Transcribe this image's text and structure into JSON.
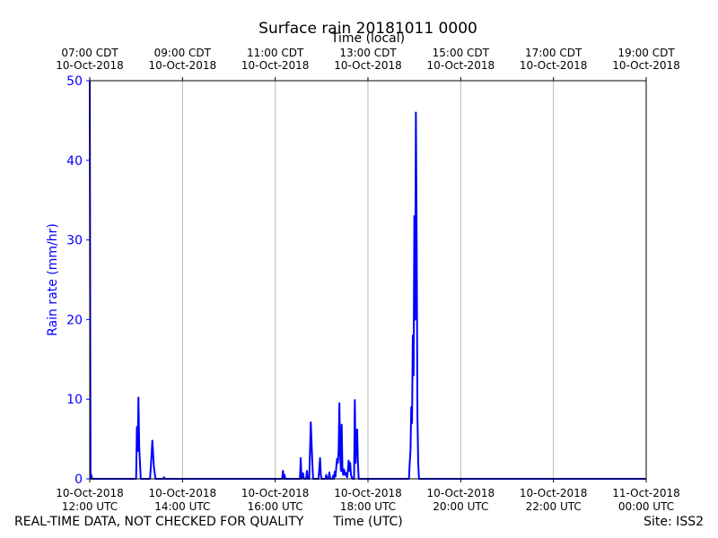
{
  "footer": {
    "left": "REAL-TIME DATA, NOT CHECKED FOR QUALITY",
    "center": "Time (UTC)",
    "right": "Site: ISS2"
  },
  "colors": {
    "series": "#0000ff",
    "grid": "#b0b0b0",
    "axis": "#000000"
  },
  "chart_data": {
    "type": "line",
    "title": "Surface rain 20181011 0000",
    "xlabel": "Time (UTC)",
    "x2label": "Time (local)",
    "ylabel": "Rain rate (mm/hr)",
    "xlim": [
      "2018-10-10 12:00",
      "2018-10-11 00:00"
    ],
    "ylim": [
      0,
      50
    ],
    "yticks": [
      0,
      10,
      20,
      30,
      40,
      50
    ],
    "grid": "vertical",
    "xticks": [
      {
        "t": "2018-10-10 12:00",
        "line1": "10-Oct-2018",
        "line2": "12:00 UTC"
      },
      {
        "t": "2018-10-10 14:00",
        "line1": "10-Oct-2018",
        "line2": "14:00 UTC"
      },
      {
        "t": "2018-10-10 16:00",
        "line1": "10-Oct-2018",
        "line2": "16:00 UTC"
      },
      {
        "t": "2018-10-10 18:00",
        "line1": "10-Oct-2018",
        "line2": "18:00 UTC"
      },
      {
        "t": "2018-10-10 20:00",
        "line1": "10-Oct-2018",
        "line2": "20:00 UTC"
      },
      {
        "t": "2018-10-10 22:00",
        "line1": "10-Oct-2018",
        "line2": "22:00 UTC"
      },
      {
        "t": "2018-10-11 00:00",
        "line1": "11-Oct-2018",
        "line2": "00:00 UTC"
      }
    ],
    "x2ticks": [
      {
        "t": "2018-10-10 12:00",
        "line1": "07:00 CDT",
        "line2": "10-Oct-2018"
      },
      {
        "t": "2018-10-10 14:00",
        "line1": "09:00 CDT",
        "line2": "10-Oct-2018"
      },
      {
        "t": "2018-10-10 16:00",
        "line1": "11:00 CDT",
        "line2": "10-Oct-2018"
      },
      {
        "t": "2018-10-10 18:00",
        "line1": "13:00 CDT",
        "line2": "10-Oct-2018"
      },
      {
        "t": "2018-10-10 20:00",
        "line1": "15:00 CDT",
        "line2": "10-Oct-2018"
      },
      {
        "t": "2018-10-10 22:00",
        "line1": "17:00 CDT",
        "line2": "10-Oct-2018"
      },
      {
        "t": "2018-10-11 00:00",
        "line1": "19:00 CDT",
        "line2": "10-Oct-2018"
      }
    ],
    "series": [
      {
        "points": [
          [
            "2018-10-10 12:00",
            50
          ],
          [
            "2018-10-10 12:01",
            0
          ],
          [
            "2018-10-10 12:02",
            0.5
          ],
          [
            "2018-10-10 12:03",
            0
          ],
          [
            "2018-10-10 13:00",
            0
          ],
          [
            "2018-10-10 13:01",
            6.5
          ],
          [
            "2018-10-10 13:02",
            3.5
          ],
          [
            "2018-10-10 13:03",
            10.2
          ],
          [
            "2018-10-10 13:04",
            4
          ],
          [
            "2018-10-10 13:06",
            0
          ],
          [
            "2018-10-10 13:18",
            0
          ],
          [
            "2018-10-10 13:20",
            3
          ],
          [
            "2018-10-10 13:21",
            4.8
          ],
          [
            "2018-10-10 13:23",
            1.5
          ],
          [
            "2018-10-10 13:25",
            0
          ],
          [
            "2018-10-10 13:35",
            0
          ],
          [
            "2018-10-10 13:36",
            0.2
          ],
          [
            "2018-10-10 13:37",
            0
          ],
          [
            "2018-10-10 16:09",
            0
          ],
          [
            "2018-10-10 16:10",
            1
          ],
          [
            "2018-10-10 16:11",
            0
          ],
          [
            "2018-10-10 16:12",
            0.5
          ],
          [
            "2018-10-10 16:13",
            0
          ],
          [
            "2018-10-10 16:32",
            0
          ],
          [
            "2018-10-10 16:33",
            2.6
          ],
          [
            "2018-10-10 16:34",
            0
          ],
          [
            "2018-10-10 16:36",
            0.7
          ],
          [
            "2018-10-10 16:37",
            0
          ],
          [
            "2018-10-10 16:40",
            0
          ],
          [
            "2018-10-10 16:41",
            1
          ],
          [
            "2018-10-10 16:42",
            0
          ],
          [
            "2018-10-10 16:44",
            0
          ],
          [
            "2018-10-10 16:46",
            7.1
          ],
          [
            "2018-10-10 16:48",
            2
          ],
          [
            "2018-10-10 16:49",
            0
          ],
          [
            "2018-10-10 16:56",
            0
          ],
          [
            "2018-10-10 16:58",
            2.6
          ],
          [
            "2018-10-10 16:59",
            0.5
          ],
          [
            "2018-10-10 17:00",
            0
          ],
          [
            "2018-10-10 17:05",
            0
          ],
          [
            "2018-10-10 17:06",
            0.5
          ],
          [
            "2018-10-10 17:07",
            0
          ],
          [
            "2018-10-10 17:09",
            0
          ],
          [
            "2018-10-10 17:10",
            0.8
          ],
          [
            "2018-10-10 17:11",
            0
          ],
          [
            "2018-10-10 17:14",
            0
          ],
          [
            "2018-10-10 17:15",
            0.4
          ],
          [
            "2018-10-10 17:16",
            0
          ],
          [
            "2018-10-10 17:17",
            0.9
          ],
          [
            "2018-10-10 17:18",
            0.3
          ],
          [
            "2018-10-10 17:19",
            1.5
          ],
          [
            "2018-10-10 17:20",
            2.5
          ],
          [
            "2018-10-10 17:21",
            2
          ],
          [
            "2018-10-10 17:22",
            3.5
          ],
          [
            "2018-10-10 17:23",
            9.5
          ],
          [
            "2018-10-10 17:24",
            3
          ],
          [
            "2018-10-10 17:25",
            1
          ],
          [
            "2018-10-10 17:26",
            6.8
          ],
          [
            "2018-10-10 17:27",
            1
          ],
          [
            "2018-10-10 17:28",
            0.5
          ],
          [
            "2018-10-10 17:29",
            1.2
          ],
          [
            "2018-10-10 17:30",
            0.5
          ],
          [
            "2018-10-10 17:31",
            0.8
          ],
          [
            "2018-10-10 17:32",
            0.4
          ],
          [
            "2018-10-10 17:33",
            0.2
          ],
          [
            "2018-10-10 17:34",
            1
          ],
          [
            "2018-10-10 17:35",
            2.3
          ],
          [
            "2018-10-10 17:36",
            1
          ],
          [
            "2018-10-10 17:37",
            2
          ],
          [
            "2018-10-10 17:38",
            0.5
          ],
          [
            "2018-10-10 17:39",
            0.2
          ],
          [
            "2018-10-10 17:40",
            0
          ],
          [
            "2018-10-10 17:42",
            0
          ],
          [
            "2018-10-10 17:43",
            9.9
          ],
          [
            "2018-10-10 17:44",
            2
          ],
          [
            "2018-10-10 17:45",
            5
          ],
          [
            "2018-10-10 17:46",
            6.2
          ],
          [
            "2018-10-10 17:47",
            2
          ],
          [
            "2018-10-10 17:48",
            0
          ],
          [
            "2018-10-10 18:53",
            0
          ],
          [
            "2018-10-10 18:54",
            2
          ],
          [
            "2018-10-10 18:55",
            3.5
          ],
          [
            "2018-10-10 18:56",
            9
          ],
          [
            "2018-10-10 18:57",
            7
          ],
          [
            "2018-10-10 18:58",
            18
          ],
          [
            "2018-10-10 18:59",
            13
          ],
          [
            "2018-10-10 19:00",
            33
          ],
          [
            "2018-10-10 19:01",
            20
          ],
          [
            "2018-10-10 19:02",
            46
          ],
          [
            "2018-10-10 19:03",
            30
          ],
          [
            "2018-10-10 19:04",
            8
          ],
          [
            "2018-10-10 19:05",
            2
          ],
          [
            "2018-10-10 19:06",
            0
          ],
          [
            "2018-10-11 00:00",
            0
          ]
        ]
      }
    ]
  }
}
